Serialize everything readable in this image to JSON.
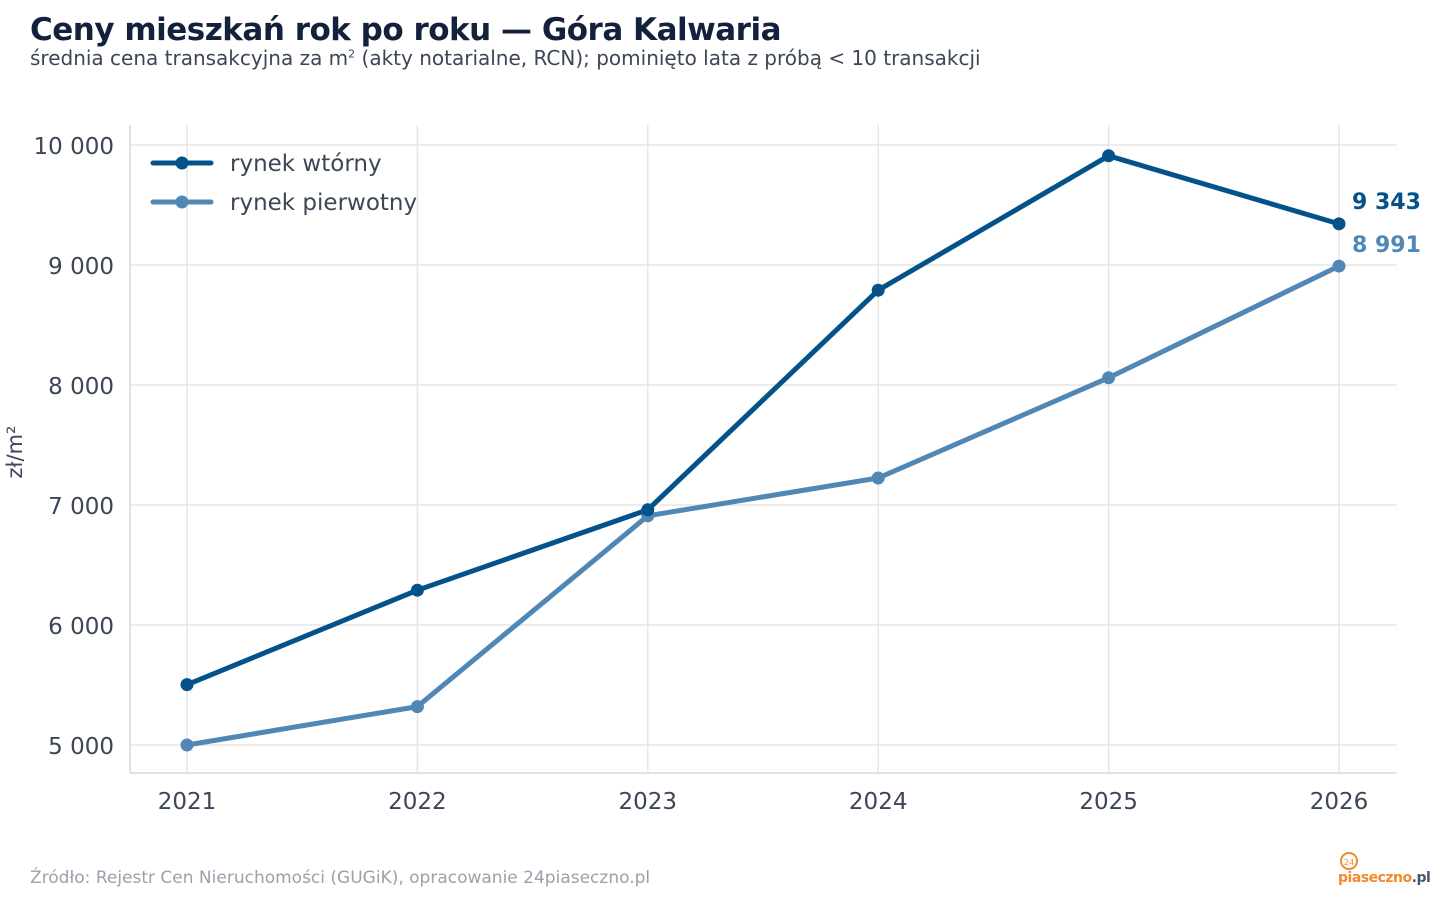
{
  "chart_data": {
    "type": "line",
    "title": "Ceny mieszkań rok po roku — Góra Kalwaria",
    "subtitle_pre": "średnia cena transakcyjna za m",
    "subtitle_sup": "2",
    "subtitle_post": " (akty notarialne, RCN); pominięto lata z próbą < 10 transakcji",
    "ylabel": "zł/m²",
    "x": [
      "2021",
      "2022",
      "2023",
      "2024",
      "2025",
      "2026"
    ],
    "ylim": [
      4750,
      10150
    ],
    "yticks": [
      5000,
      6000,
      7000,
      8000,
      9000,
      10000
    ],
    "ytick_labels": [
      "5 000",
      "6 000",
      "7 000",
      "8 000",
      "9 000",
      "10 000"
    ],
    "grid": true,
    "legend_position": "top-left",
    "series": [
      {
        "name": "rynek wtórny",
        "color": "#03538a",
        "values": [
          5503,
          6290,
          6960,
          8790,
          9910,
          9343
        ],
        "end_label": "9 343"
      },
      {
        "name": "rynek pierwotny",
        "color": "#5087b5",
        "values": [
          5000,
          5320,
          6910,
          7225,
          8060,
          8991
        ],
        "end_label": "8 991"
      }
    ]
  },
  "footer": {
    "source": "Źródło: Rejestr Cen Nieruchomości (GUGiK), opracowanie 24piaseczno.pl",
    "logo_badge": "24",
    "logo_text_main": "piaseczno",
    "logo_text_tld": ".pl"
  }
}
